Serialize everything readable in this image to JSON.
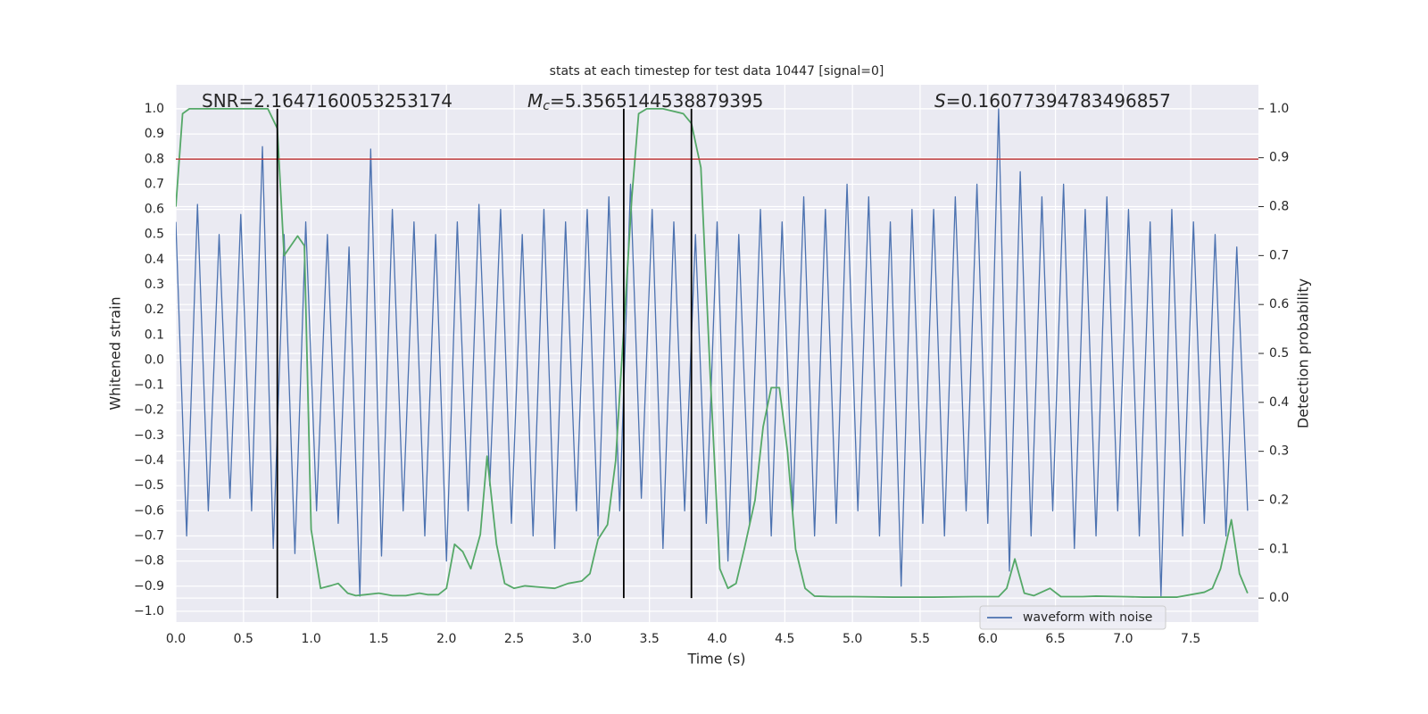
{
  "chart_data": {
    "type": "line",
    "title": "stats at each timestep for test data 10447 [signal=0]",
    "xlabel": "Time (s)",
    "ylabel": "Whitened strain",
    "y2label": "Detection probability",
    "xlim": [
      0,
      8
    ],
    "ylim": [
      -1.043,
      1.096
    ],
    "y2lim": [
      -0.049,
      1.049
    ],
    "xticks": [
      {
        "value": 0,
        "label": "0.0"
      },
      0.5,
      {
        "value": 1,
        "label": "1.0"
      },
      1.5,
      {
        "value": 2,
        "label": "2.0"
      },
      2.5,
      {
        "value": 3,
        "label": "3.0"
      },
      3.5,
      {
        "value": 4,
        "label": "4.0"
      },
      4.5,
      {
        "value": 5,
        "label": "5.0"
      },
      5.5,
      {
        "value": 6,
        "label": "6.0"
      },
      6.5,
      {
        "value": 7,
        "label": "7.0"
      },
      7.5
    ],
    "yticks": [
      {
        "value": -1,
        "label": "−1.0"
      },
      {
        "value": -0.9,
        "label": "−0.9"
      },
      {
        "value": -0.8,
        "label": "−0.8"
      },
      {
        "value": -0.7,
        "label": "−0.7"
      },
      {
        "value": -0.6,
        "label": "−0.6"
      },
      {
        "value": -0.5,
        "label": "−0.5"
      },
      {
        "value": -0.4,
        "label": "−0.4"
      },
      {
        "value": -0.3,
        "label": "−0.3"
      },
      {
        "value": -0.2,
        "label": "−0.2"
      },
      {
        "value": -0.1,
        "label": "−0.1"
      },
      {
        "value": 0,
        "label": "0.0"
      },
      0.1,
      0.2,
      0.3,
      0.4,
      0.5,
      0.6,
      0.7,
      0.8,
      0.9,
      {
        "value": 1,
        "label": "1.0"
      }
    ],
    "y2ticks": [
      {
        "value": 0,
        "label": "0.0"
      },
      0.1,
      0.2,
      0.3,
      0.4,
      0.5,
      0.6,
      0.7,
      0.8,
      0.9,
      {
        "value": 1,
        "label": "1.0"
      }
    ],
    "grid": true,
    "legend": "lower right",
    "annotations": [
      {
        "text": "SNR=2.1647160053253174"
      },
      {
        "symbol": "M",
        "subscript": "c",
        "text": "=5.3565144538879395"
      },
      {
        "symbol": "S",
        "text": "=0.16077394783496857"
      }
    ],
    "hline": {
      "value": 0.8,
      "color": "#c03d3e"
    },
    "vlines": {
      "values": [
        0.75,
        3.31,
        3.81
      ],
      "color": "#000000",
      "axis": "y2",
      "range": [
        0,
        1
      ]
    },
    "series": [
      {
        "name": "waveform with noise",
        "color": "#4c72b0",
        "x": [
          0,
          0.08,
          0.16,
          0.24,
          0.32,
          0.4,
          0.48,
          0.56,
          0.64,
          0.72,
          0.8,
          0.88,
          0.96,
          1.04,
          1.12,
          1.2,
          1.28,
          1.36,
          1.44,
          1.52,
          1.6,
          1.68,
          1.76,
          1.84,
          1.92,
          2,
          2.08,
          2.16,
          2.24,
          2.32,
          2.4,
          2.48,
          2.56,
          2.64,
          2.72,
          2.8,
          2.88,
          2.96,
          3.04,
          3.12,
          3.2,
          3.28,
          3.36,
          3.44,
          3.52,
          3.6,
          3.68,
          3.76,
          3.84,
          3.92,
          4,
          4.08,
          4.16,
          4.24,
          4.32,
          4.4,
          4.48,
          4.56,
          4.64,
          4.72,
          4.8,
          4.88,
          4.96,
          5.04,
          5.12,
          5.2,
          5.28,
          5.36,
          5.44,
          5.52,
          5.6,
          5.68,
          5.76,
          5.84,
          5.92,
          6,
          6.08,
          6.16,
          6.24,
          6.32,
          6.4,
          6.48,
          6.56,
          6.64,
          6.72,
          6.8,
          6.88,
          6.96,
          7.04,
          7.12,
          7.2,
          7.28,
          7.36,
          7.44,
          7.52,
          7.6,
          7.68,
          7.76,
          7.84,
          7.92
        ],
        "values": [
          0.55,
          -0.7,
          0.62,
          -0.6,
          0.5,
          -0.55,
          0.58,
          -0.6,
          0.85,
          -0.75,
          0.5,
          -0.77,
          0.55,
          -0.6,
          0.5,
          -0.65,
          0.45,
          -0.94,
          0.84,
          -0.78,
          0.6,
          -0.6,
          0.55,
          -0.7,
          0.5,
          -0.8,
          0.55,
          -0.6,
          0.62,
          -0.5,
          0.6,
          -0.65,
          0.5,
          -0.7,
          0.6,
          -0.75,
          0.55,
          -0.6,
          0.6,
          -0.7,
          0.65,
          -0.6,
          0.7,
          -0.55,
          0.6,
          -0.75,
          0.55,
          -0.6,
          0.5,
          -0.65,
          0.55,
          -0.8,
          0.5,
          -0.65,
          0.6,
          -0.7,
          0.55,
          -0.6,
          0.65,
          -0.7,
          0.6,
          -0.65,
          0.7,
          -0.6,
          0.65,
          -0.7,
          0.55,
          -0.9,
          0.6,
          -0.65,
          0.6,
          -0.7,
          0.65,
          -0.6,
          0.7,
          -0.65,
          1.0,
          -0.84,
          0.75,
          -0.7,
          0.65,
          -0.6,
          0.7,
          -0.75,
          0.6,
          -0.7,
          0.65,
          -0.6,
          0.6,
          -0.7,
          0.55,
          -0.94,
          0.6,
          -0.7,
          0.55,
          -0.65,
          0.5,
          -0.7,
          0.45,
          -0.6
        ]
      },
      {
        "color": "#55a868",
        "axis": "y2",
        "x": [
          0,
          0.05,
          0.1,
          0.3,
          0.5,
          0.68,
          0.75,
          0.8,
          0.85,
          0.9,
          0.95,
          1,
          1.07,
          1.14,
          1.2,
          1.27,
          1.33,
          1.4,
          1.5,
          1.6,
          1.7,
          1.8,
          1.86,
          1.94,
          2,
          2.06,
          2.12,
          2.18,
          2.25,
          2.3,
          2.37,
          2.43,
          2.5,
          2.58,
          2.66,
          2.8,
          2.9,
          3,
          3.06,
          3.12,
          3.19,
          3.25,
          3.31,
          3.37,
          3.42,
          3.48,
          3.6,
          3.75,
          3.81,
          3.88,
          3.95,
          4.02,
          4.08,
          4.14,
          4.2,
          4.28,
          4.34,
          4.4,
          4.46,
          4.52,
          4.58,
          4.65,
          4.72,
          4.85,
          5,
          5.3,
          5.6,
          5.9,
          6.08,
          6.14,
          6.2,
          6.27,
          6.34,
          6.46,
          6.54,
          6.7,
          6.8,
          7,
          7.15,
          7.4,
          7.6,
          7.66,
          7.72,
          7.8,
          7.86,
          7.92
        ],
        "values": [
          0.8,
          0.99,
          1,
          1,
          1,
          1,
          0.96,
          0.7,
          0.72,
          0.74,
          0.72,
          0.14,
          0.02,
          0.025,
          0.03,
          0.01,
          0.005,
          0.007,
          0.01,
          0.005,
          0.005,
          0.01,
          0.007,
          0.007,
          0.02,
          0.11,
          0.095,
          0.06,
          0.13,
          0.29,
          0.11,
          0.03,
          0.02,
          0.025,
          0.023,
          0.02,
          0.03,
          0.035,
          0.05,
          0.12,
          0.15,
          0.28,
          0.55,
          0.82,
          0.99,
          1,
          1,
          0.99,
          0.97,
          0.88,
          0.45,
          0.06,
          0.02,
          0.03,
          0.1,
          0.2,
          0.35,
          0.43,
          0.43,
          0.3,
          0.1,
          0.02,
          0.004,
          0.003,
          0.003,
          0.002,
          0.002,
          0.003,
          0.003,
          0.02,
          0.08,
          0.01,
          0.005,
          0.02,
          0.003,
          0.003,
          0.004,
          0.003,
          0.002,
          0.002,
          0.012,
          0.02,
          0.06,
          0.16,
          0.05,
          0.01
        ]
      }
    ]
  }
}
